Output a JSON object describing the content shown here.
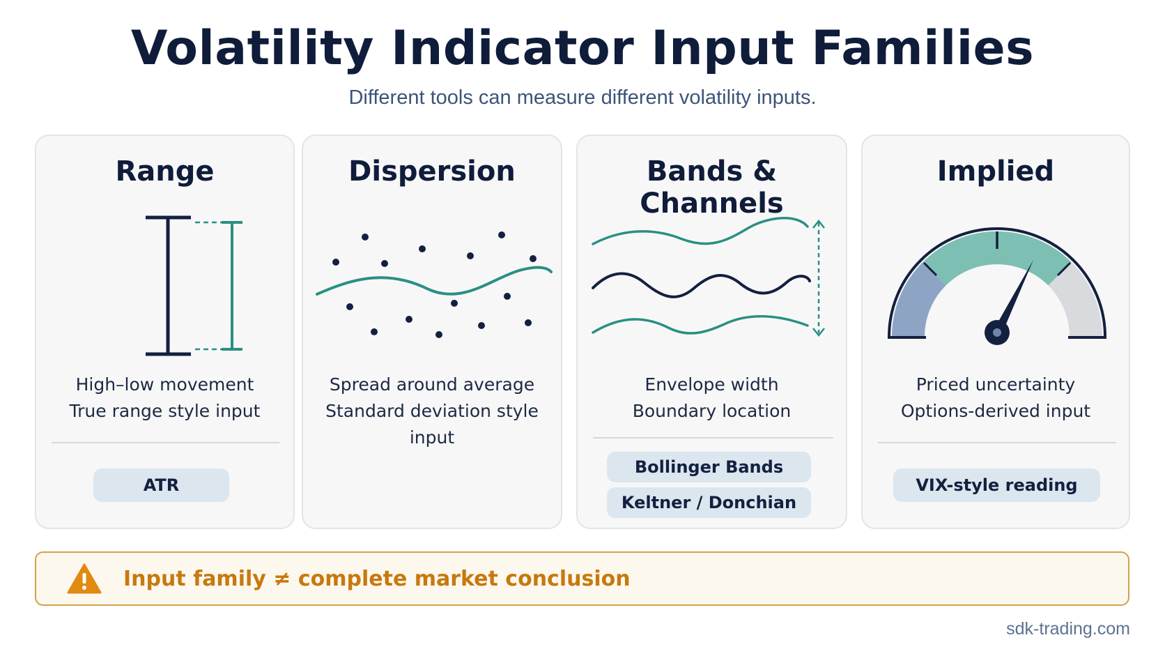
{
  "header": {
    "title": "Volatility Indicator Input Families",
    "subtitle": "Different tools can measure different volatility inputs."
  },
  "cards": [
    {
      "title": "Range",
      "icon": "range-bars-icon",
      "lines": [
        "High–low movement",
        "True range style input"
      ],
      "tags": [
        "ATR"
      ]
    },
    {
      "title": "Dispersion",
      "icon": "scatter-dispersion-icon",
      "lines": [
        "Spread around average",
        "Standard deviation style input"
      ],
      "tags": []
    },
    {
      "title": "Bands & Channels",
      "icon": "bands-channels-icon",
      "lines": [
        "Envelope width",
        "Boundary location"
      ],
      "tags": [
        "Bollinger Bands",
        "Keltner / Donchian"
      ]
    },
    {
      "title": "Implied",
      "icon": "gauge-icon",
      "lines": [
        "Priced uncertainty",
        "Options-derived input"
      ],
      "tags": [
        "VIX-style reading"
      ]
    }
  ],
  "warning": {
    "icon": "warning-triangle-icon",
    "text": "Input family ≠ complete market conclusion"
  },
  "footer": {
    "site": "sdk-trading.com"
  },
  "colors": {
    "navy": "#13203f",
    "teal": "#2a8f83",
    "gauge_blue": "#8ea4c4",
    "gauge_teal": "#7dbfb3",
    "gauge_grey": "#d9dadd",
    "warning_orange": "#c7790f",
    "pill_bg": "#dce6ef"
  }
}
